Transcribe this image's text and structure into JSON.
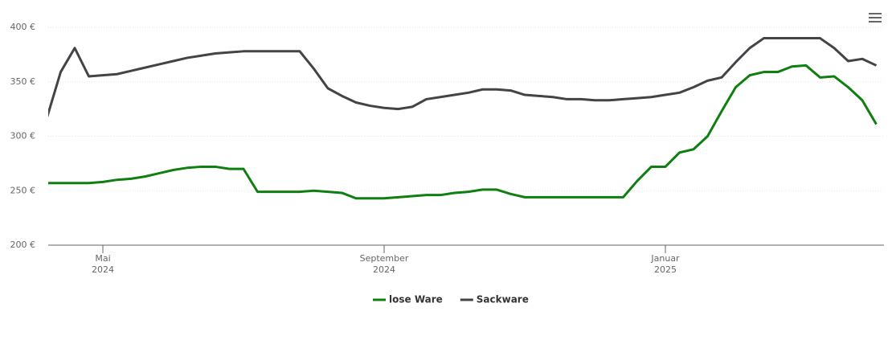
{
  "chart_data": {
    "type": "line",
    "categories": [
      null,
      null,
      null,
      null,
      [
        "Mai",
        "2024"
      ],
      null,
      null,
      null,
      null,
      null,
      null,
      null,
      null,
      null,
      null,
      null,
      null,
      null,
      null,
      null,
      null,
      null,
      null,
      null,
      [
        "September",
        "2024"
      ],
      null,
      null,
      null,
      null,
      null,
      null,
      null,
      null,
      null,
      null,
      null,
      null,
      null,
      null,
      null,
      null,
      null,
      null,
      null,
      [
        "Januar",
        "2025"
      ],
      null,
      null,
      null,
      null,
      null,
      null,
      null,
      null,
      null,
      null,
      null,
      null,
      null,
      null,
      null
    ],
    "series": [
      {
        "name": "lose Ware",
        "color": "#0f7f12",
        "values": [
          257,
          257,
          257,
          257,
          258,
          260,
          261,
          263,
          266,
          269,
          271,
          272,
          272,
          270,
          270,
          249,
          249,
          249,
          249,
          250,
          249,
          248,
          243,
          243,
          243,
          244,
          245,
          246,
          246,
          248,
          249,
          251,
          251,
          247,
          244,
          244,
          244,
          244,
          244,
          244,
          244,
          244,
          259,
          272,
          272,
          285,
          288,
          300,
          323,
          345,
          356,
          359,
          359,
          364,
          365,
          354,
          355,
          345,
          333,
          311
        ]
      },
      {
        "name": "Sackware",
        "color": "#434348",
        "values": [
          316,
          359,
          381,
          355,
          356,
          357,
          360,
          363,
          366,
          369,
          372,
          374,
          376,
          377,
          378,
          378,
          378,
          378,
          378,
          362,
          344,
          337,
          331,
          328,
          326,
          325,
          327,
          334,
          336,
          338,
          340,
          343,
          343,
          342,
          338,
          337,
          336,
          334,
          334,
          333,
          333,
          334,
          335,
          336,
          338,
          340,
          345,
          351,
          354,
          368,
          381,
          390,
          390,
          390,
          390,
          390,
          381,
          369,
          371,
          365
        ]
      }
    ],
    "ylim": [
      200,
      400
    ],
    "yticks": [
      {
        "value": 200,
        "label": "200 €"
      },
      {
        "value": 250,
        "label": "250 €"
      },
      {
        "value": 300,
        "label": "300 €"
      },
      {
        "value": 350,
        "label": "350 €"
      },
      {
        "value": 400,
        "label": "400 €"
      }
    ],
    "grid": true,
    "legend": "bottom"
  }
}
